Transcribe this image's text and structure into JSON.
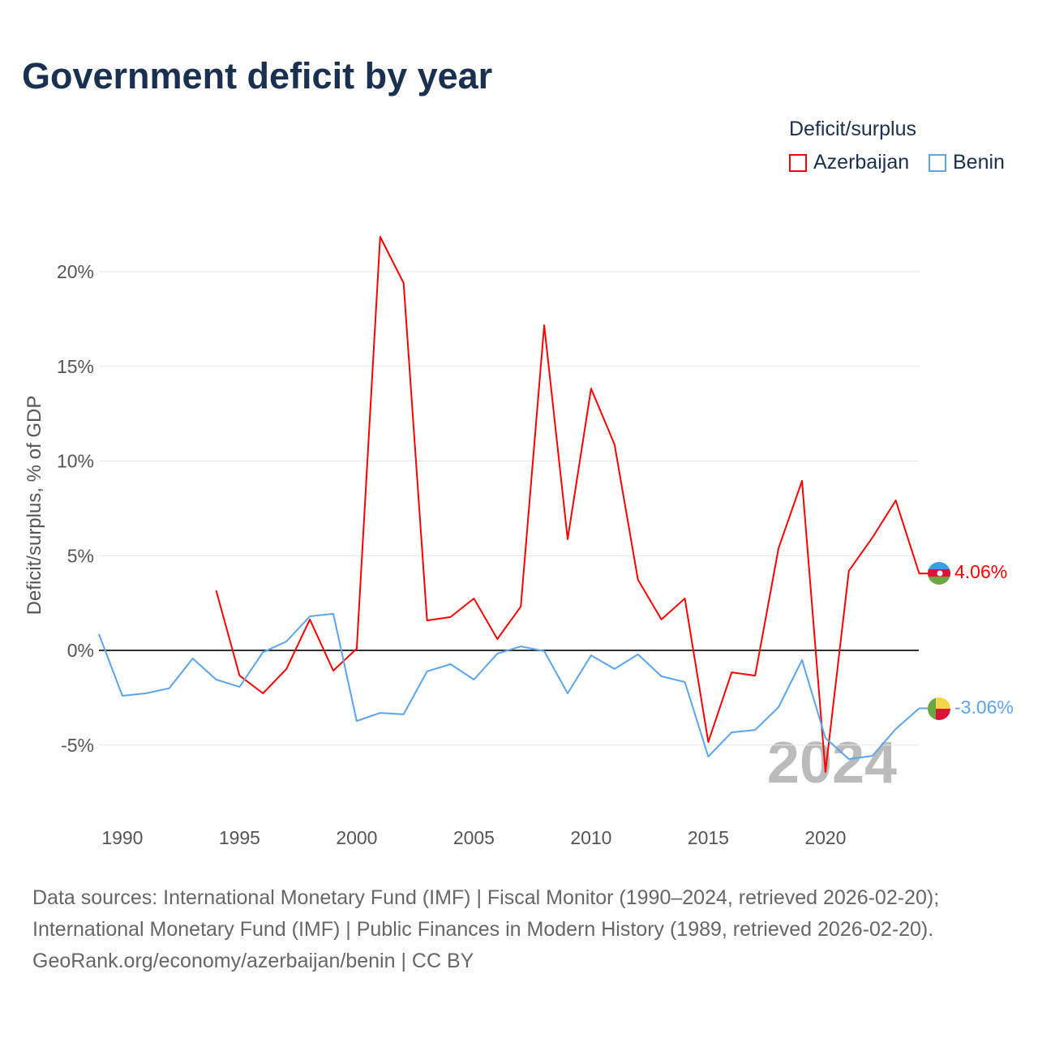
{
  "title": "Government deficit by year",
  "legend": {
    "title": "Deficit/surplus",
    "items": [
      {
        "label": "Azerbaijan",
        "color": "#ff0000"
      },
      {
        "label": "Benin",
        "color": "#5aa5f0"
      }
    ]
  },
  "watermark_year": "2024",
  "end_labels": {
    "azerbaijan": "4.06%",
    "benin": "-3.06%"
  },
  "footer": {
    "line1": "Data sources: International Monetary Fund (IMF) | Fiscal Monitor (1990–2024, retrieved 2026-02-20);",
    "line2": "International Monetary Fund (IMF) | Public Finances in Modern History (1989, retrieved 2026-02-20).",
    "line3": "GeoRank.org/economy/azerbaijan/benin | CC BY"
  },
  "chart_data": {
    "type": "line",
    "title": "Government deficit by year",
    "ylabel": "Deficit/surplus, % of GDP",
    "xlabel": "",
    "xlim": [
      1989,
      2024
    ],
    "ylim": [
      -8.5,
      22.5
    ],
    "xticks": [
      1990,
      1995,
      2000,
      2005,
      2010,
      2015,
      2020
    ],
    "yticks": [
      -5,
      0,
      5,
      10,
      15,
      20
    ],
    "ytick_labels": [
      "-5%",
      "0%",
      "5%",
      "10%",
      "15%",
      "20%"
    ],
    "grid": true,
    "legend_position": "top-right",
    "series": [
      {
        "name": "Azerbaijan",
        "color": "#ff0000",
        "x": [
          1994,
          1995,
          1996,
          1997,
          1998,
          1999,
          2000,
          2001,
          2002,
          2003,
          2004,
          2005,
          2006,
          2007,
          2008,
          2009,
          2010,
          2011,
          2012,
          2013,
          2014,
          2015,
          2016,
          2017,
          2018,
          2019,
          2020,
          2021,
          2022,
          2023,
          2024
        ],
        "values": [
          3.17,
          -1.33,
          -2.27,
          -0.98,
          1.63,
          -1.07,
          0.09,
          21.84,
          19.4,
          1.58,
          1.76,
          2.74,
          0.6,
          2.31,
          17.17,
          5.87,
          13.83,
          10.88,
          3.73,
          1.63,
          2.74,
          -4.84,
          -1.16,
          -1.33,
          5.4,
          8.95,
          -6.42,
          4.2,
          5.95,
          7.92,
          4.06
        ]
      },
      {
        "name": "Benin",
        "color": "#5aa5f0",
        "x": [
          1989,
          1990,
          1991,
          1992,
          1993,
          1994,
          1995,
          1996,
          1997,
          1998,
          1999,
          2000,
          2001,
          2002,
          2003,
          2004,
          2005,
          2006,
          2007,
          2008,
          2009,
          2010,
          2011,
          2012,
          2013,
          2014,
          2015,
          2016,
          2017,
          2018,
          2019,
          2020,
          2021,
          2022,
          2023,
          2024
        ],
        "values": [
          0.86,
          -2.4,
          -2.27,
          -2.0,
          -0.43,
          -1.54,
          -1.93,
          -0.1,
          0.47,
          1.8,
          1.93,
          -3.73,
          -3.3,
          -3.38,
          -1.11,
          -0.73,
          -1.54,
          -0.17,
          0.21,
          -0.04,
          -2.27,
          -0.26,
          -0.98,
          -0.21,
          -1.37,
          -1.67,
          -5.61,
          -4.33,
          -4.2,
          -3.0,
          -0.51,
          -4.63,
          -5.74,
          -5.57,
          -4.15,
          -3.06
        ]
      }
    ]
  }
}
